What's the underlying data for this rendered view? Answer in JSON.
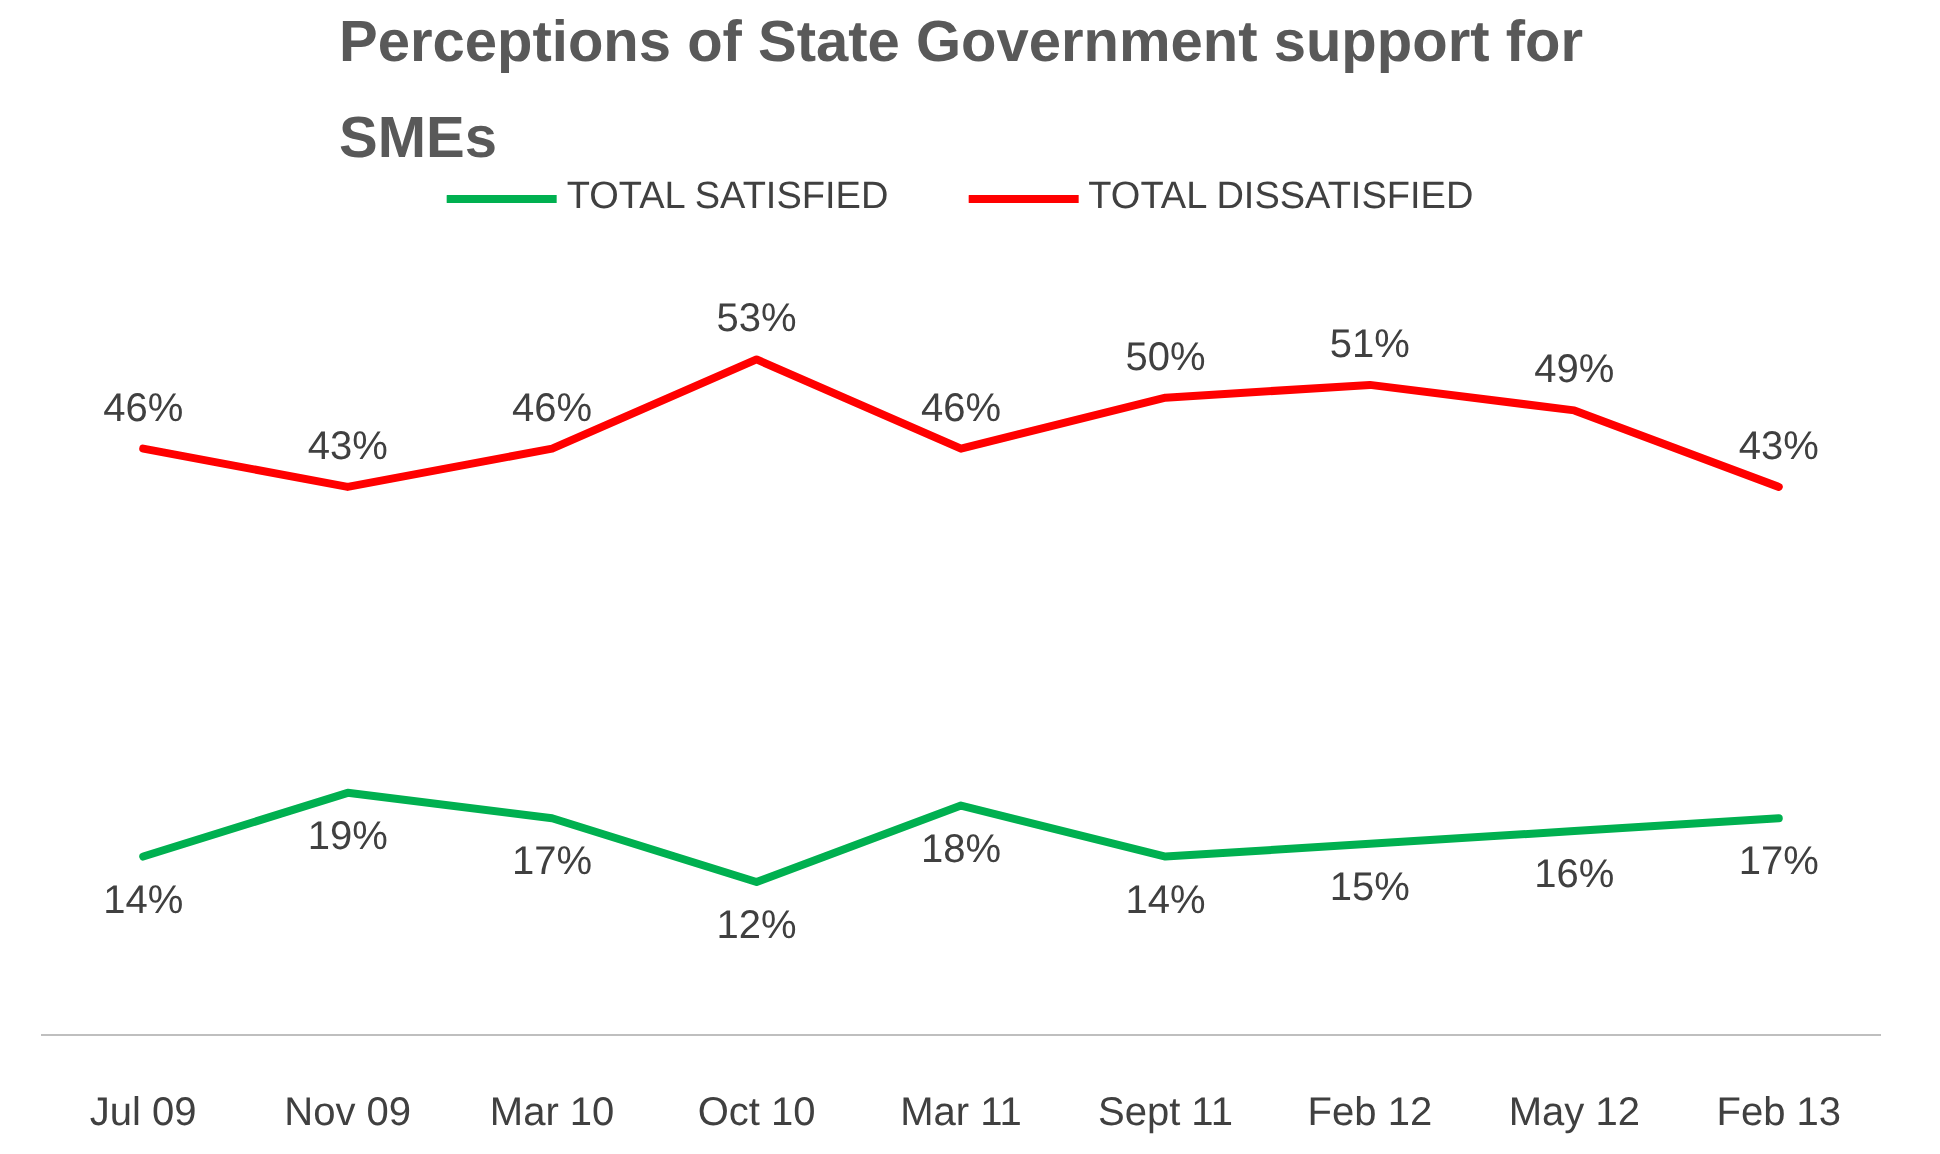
{
  "chart_data": {
    "type": "line",
    "title": "Perceptions of State Government support for SMEs",
    "categories": [
      "Jul 09",
      "Nov 09",
      "Mar 10",
      "Oct 10",
      "Mar 11",
      "Sept 11",
      "Feb 12",
      "May 12",
      "Feb 13"
    ],
    "series": [
      {
        "name": "TOTAL SATISFIED",
        "color": "#00b050",
        "values": [
          14,
          19,
          17,
          12,
          18,
          14,
          15,
          16,
          17
        ],
        "value_labels": [
          "14%",
          "19%",
          "17%",
          "12%",
          "18%",
          "14%",
          "15%",
          "16%",
          "17%"
        ]
      },
      {
        "name": "TOTAL DISSATISFIED",
        "color": "#ff0000",
        "values": [
          46,
          43,
          46,
          53,
          46,
          50,
          51,
          49,
          43
        ],
        "value_labels": [
          "46%",
          "43%",
          "46%",
          "53%",
          "46%",
          "50%",
          "51%",
          "49%",
          "43%"
        ]
      }
    ],
    "tick_labels": "x",
    "legend": "top",
    "line_style": "solid"
  }
}
